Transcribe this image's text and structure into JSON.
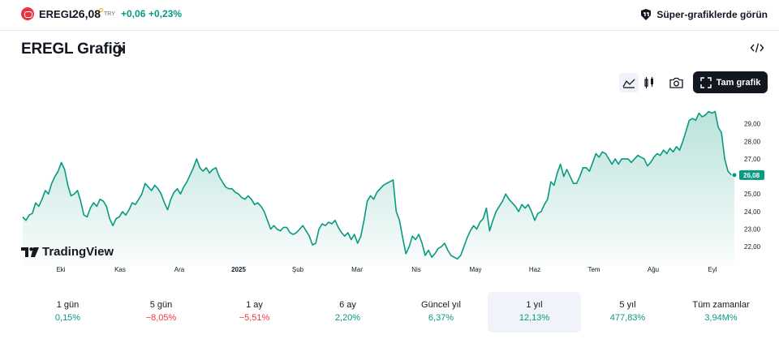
{
  "symbol": {
    "name": "EREGL",
    "price": "26,08",
    "currency": "TRY",
    "change": "+0,06",
    "change_pct": "+0,23%",
    "logo_icon": "ereğli-logo-icon"
  },
  "promo": {
    "label": "Süper-grafiklerde görün",
    "icon": "supercharts-icon"
  },
  "title": "EREGL Grafiği",
  "toolbar": {
    "area_icon": "area-chart-icon",
    "candle_icon": "candlestick-icon",
    "camera_icon": "camera-icon",
    "fullchart_label": "Tam grafik",
    "embed_icon": "embed-code-icon"
  },
  "watermark": "TradingView",
  "chart_data": {
    "type": "area",
    "xlabel": "",
    "ylabel": "",
    "ylim": [
      20.9,
      30.6
    ],
    "y_ticks": [
      "29,00",
      "28,00",
      "27,00",
      "26,00",
      "25,00",
      "24,00",
      "23,00",
      "22,00"
    ],
    "x_ticks": [
      "Eki",
      "Kas",
      "Ara",
      "2025",
      "Şub",
      "Mar",
      "Nis",
      "May",
      "Haz",
      "Tem",
      "Ağu",
      "Eyl"
    ],
    "last_value_label": "26,08",
    "series": [
      {
        "values": [
          23.7,
          23.5,
          23.8,
          23.9,
          24.5,
          24.3,
          24.7,
          25.2,
          25.0,
          25.6,
          26.0,
          26.3,
          26.8,
          26.4,
          25.5,
          24.9,
          25.0,
          25.2,
          24.6,
          23.8,
          23.7,
          24.2,
          24.5,
          24.3,
          24.7,
          24.6,
          24.3,
          23.6,
          23.2,
          23.6,
          23.7,
          24.0,
          23.8,
          24.1,
          24.5,
          24.4,
          24.7,
          25.0,
          25.6,
          25.4,
          25.2,
          25.5,
          25.3,
          25.0,
          24.5,
          24.1,
          24.7,
          25.1,
          25.3,
          25.0,
          25.4,
          25.7,
          26.1,
          26.5,
          27.0,
          26.5,
          26.3,
          26.5,
          26.2,
          26.4,
          26.5,
          26.0,
          25.7,
          25.4,
          25.3,
          25.3,
          25.1,
          25.0,
          24.8,
          24.7,
          24.9,
          24.7,
          24.4,
          24.5,
          24.3,
          24.0,
          23.5,
          23.0,
          23.2,
          23.0,
          22.9,
          23.1,
          23.1,
          22.8,
          22.7,
          22.8,
          23.0,
          23.2,
          22.9,
          22.6,
          22.1,
          22.2,
          23.0,
          23.3,
          23.2,
          23.4,
          23.3,
          23.5,
          23.1,
          22.8,
          22.6,
          22.8,
          22.4,
          22.7,
          22.2,
          22.6,
          23.5,
          24.6,
          24.9,
          24.7,
          25.1,
          25.3,
          25.5,
          25.6,
          25.7,
          25.8,
          24.0,
          23.5,
          22.5,
          21.6,
          22.0,
          22.6,
          22.4,
          22.7,
          22.2,
          21.5,
          21.8,
          21.4,
          21.6,
          21.9,
          22.0,
          22.2,
          21.8,
          21.5,
          21.4,
          21.3,
          21.5,
          22.0,
          22.5,
          22.9,
          23.2,
          23.0,
          23.4,
          23.6,
          24.2,
          22.9,
          23.5,
          24.0,
          24.3,
          24.6,
          25.0,
          24.7,
          24.5,
          24.3,
          24.0,
          24.4,
          24.2,
          24.4,
          24.0,
          23.5,
          23.9,
          24.0,
          24.4,
          24.7,
          25.7,
          25.5,
          26.2,
          26.7,
          26.0,
          26.4,
          26.0,
          25.6,
          25.6,
          26.0,
          26.5,
          26.5,
          26.3,
          26.8,
          27.3,
          27.1,
          27.4,
          27.3,
          27.0,
          26.7,
          27.0,
          26.7,
          27.0,
          27.0,
          27.0,
          26.8,
          27.0,
          27.2,
          27.1,
          27.0,
          26.6,
          26.8,
          27.1,
          27.3,
          27.2,
          27.5,
          27.3,
          27.6,
          27.4,
          27.7,
          27.5,
          28.0,
          28.6,
          29.2,
          29.3,
          29.2,
          29.6,
          29.4,
          29.5,
          29.7,
          29.6,
          29.7,
          28.8,
          28.5,
          27.0,
          26.3,
          26.1,
          26.08
        ]
      }
    ],
    "grid": false,
    "legend": "none"
  },
  "periods": [
    {
      "label": "1 gün",
      "value": "0,15%",
      "sign": "pos",
      "active": false
    },
    {
      "label": "5 gün",
      "value": "−8,05%",
      "sign": "neg",
      "active": false
    },
    {
      "label": "1 ay",
      "value": "−5,51%",
      "sign": "neg",
      "active": false
    },
    {
      "label": "6 ay",
      "value": "2,20%",
      "sign": "pos",
      "active": false
    },
    {
      "label": "Güncel yıl",
      "value": "6,37%",
      "sign": "pos",
      "active": false
    },
    {
      "label": "1 yıl",
      "value": "12,13%",
      "sign": "pos",
      "active": true
    },
    {
      "label": "5 yıl",
      "value": "477,83%",
      "sign": "pos",
      "active": false
    },
    {
      "label": "Tüm zamanlar",
      "value": "3,94M%",
      "sign": "pos",
      "active": false
    }
  ]
}
